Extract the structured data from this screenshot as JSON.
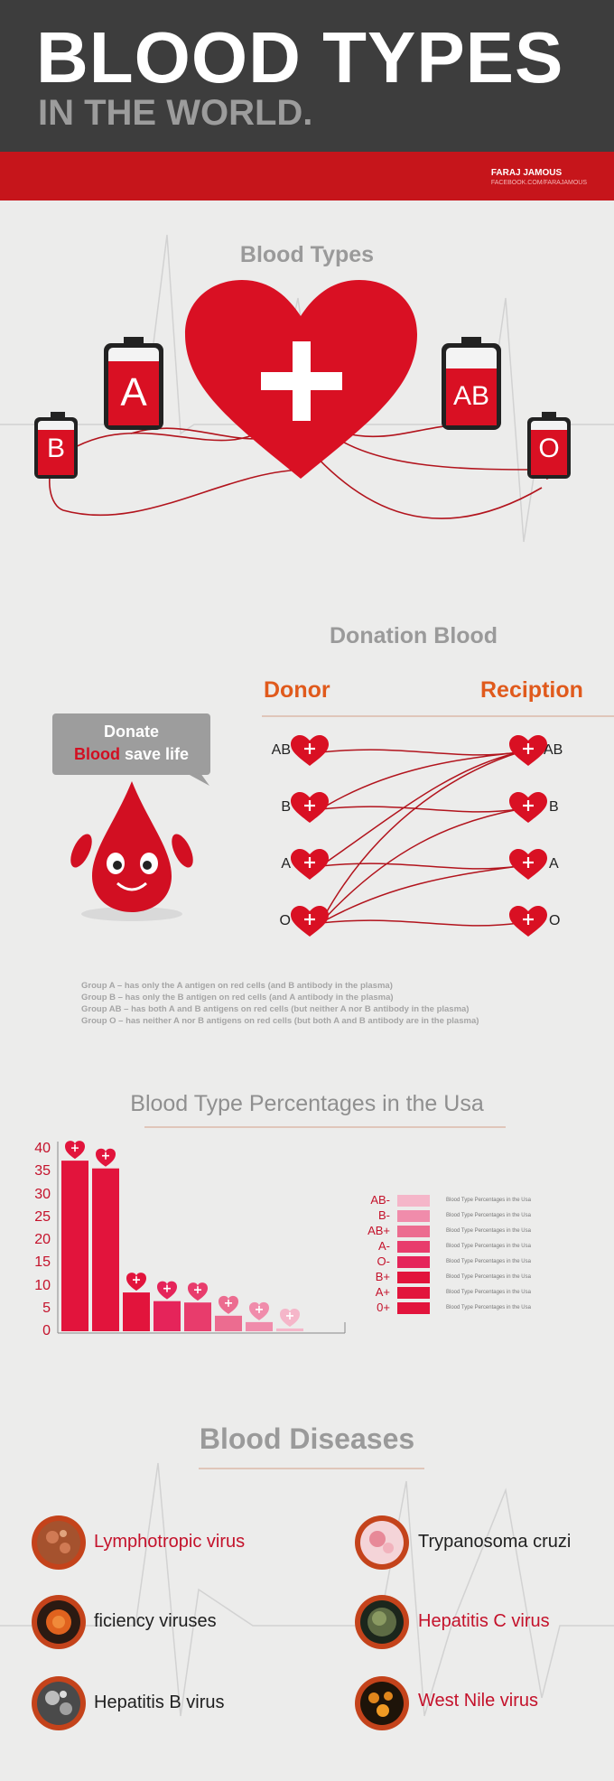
{
  "header": {
    "title": "BLOOD TYPES",
    "subtitle": "IN THE WORLD.",
    "author": "FARAJ JAMOUS",
    "author_link": "FACEBOOK.COM/FARAJAMOUS"
  },
  "blood_types": {
    "title": "Blood Types",
    "heart_symbol": "+",
    "bags": [
      "B",
      "A",
      "AB",
      "O"
    ]
  },
  "donation": {
    "title": "Donation Blood",
    "donor_label": "Donor",
    "reception_label": "Reciption",
    "bubble_line1": "Donate",
    "bubble_red": "Blood",
    "bubble_rest": "save life",
    "donors": [
      "AB",
      "B",
      "A",
      "O"
    ],
    "recipients": [
      "AB",
      "B",
      "A",
      "O"
    ],
    "notes": [
      "Group A – has only the A antigen on red cells (and B antibody in the plasma)",
      "Group B – has only the B antigen on red cells (and A antibody in the plasma)",
      "Group AB – has both A and B antigens on red cells (but neither A nor B antibody in the plasma)",
      "Group O – has neither A nor B antigens on red cells (but both A and B antibody are in the plasma)"
    ],
    "accent_color": "#e05a1c"
  },
  "chart_data": {
    "type": "bar",
    "title": "Blood Type Percentages in the Usa",
    "values": [
      37.4,
      35.7,
      8.5,
      6.6,
      6.3,
      3.4,
      2.0,
      0.6
    ],
    "colors": [
      "#e2143c",
      "#e2143c",
      "#e2143c",
      "#e5245a",
      "#e83c6c",
      "#ec6c90",
      "#f08cab",
      "#f5b6c9"
    ],
    "ylim": [
      0,
      40
    ],
    "yticks": [
      0,
      5,
      10,
      15,
      20,
      25,
      30,
      35,
      40
    ],
    "legend": [
      {
        "label": "AB-",
        "text": "Blood Type Percentages in the Usa",
        "color": "#f5b6c9"
      },
      {
        "label": "B-",
        "text": "Blood Type Percentages in the Usa",
        "color": "#f08cab"
      },
      {
        "label": "AB+",
        "text": "Blood Type Percentages in the Usa",
        "color": "#ec6c90"
      },
      {
        "label": "A-",
        "text": "Blood Type Percentages in the Usa",
        "color": "#e83c6c"
      },
      {
        "label": "O-",
        "text": "Blood Type Percentages in the Usa",
        "color": "#e5245a"
      },
      {
        "label": "B+",
        "text": "Blood Type Percentages in the Usa",
        "color": "#e2143c"
      },
      {
        "label": "A+",
        "text": "Blood Type Percentages in the Usa",
        "color": "#e2143c"
      },
      {
        "label": "0+",
        "text": "Blood Type Percentages in the Usa",
        "color": "#e2143c"
      }
    ]
  },
  "diseases": {
    "title": "Blood Diseases",
    "items": [
      {
        "name": "Lymphotropic virus",
        "icon": "virus-icon"
      },
      {
        "name": "Trypanosoma cruzi",
        "icon": "cell-icon"
      },
      {
        "name": "ficiency viruses",
        "icon": "virus-icon"
      },
      {
        "name": "Hepatitis C virus",
        "icon": "virus-icon"
      },
      {
        "name": "Hepatitis B virus",
        "icon": "virus-icon"
      },
      {
        "name": "West Nile virus",
        "icon": "virus-icon"
      }
    ]
  }
}
